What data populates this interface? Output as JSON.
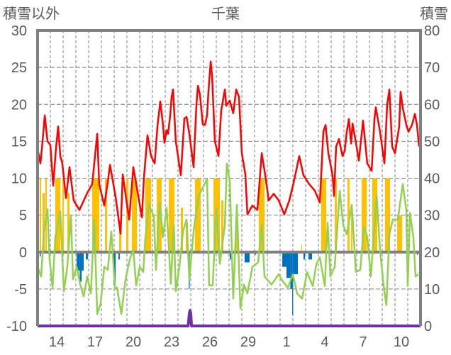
{
  "chart_data": {
    "type": "line",
    "title": "千葉",
    "ylabel_left": "積雪以外",
    "ylabel_right": "積雪",
    "ylim_left": [
      -10,
      30
    ],
    "ylim_right": [
      0,
      80
    ],
    "yticks_left": [
      "30",
      "25",
      "20",
      "15",
      "10",
      "5",
      "0",
      "-5",
      "-10"
    ],
    "yticks_right": [
      "80",
      "70",
      "60",
      "50",
      "40",
      "30",
      "20",
      "10",
      "0"
    ],
    "x_unit": "days from start of day 13",
    "xlim": [
      0,
      30
    ],
    "xtick_labels": [
      {
        "day": 1,
        "label": "14"
      },
      {
        "day": 4,
        "label": "17"
      },
      {
        "day": 7,
        "label": "20"
      },
      {
        "day": 10,
        "label": "23"
      },
      {
        "day": 13,
        "label": "26"
      },
      {
        "day": 16,
        "label": "29"
      },
      {
        "day": 19,
        "label": "1"
      },
      {
        "day": 22,
        "label": "4"
      },
      {
        "day": 25,
        "label": "7"
      },
      {
        "day": 28,
        "label": "10"
      }
    ],
    "grid": true,
    "colors": {
      "red": "#ff0000",
      "green": "#92d050",
      "yellow": "#ffc000",
      "blue": "#0070c0",
      "purple": "#7030a0",
      "axis": "#808080"
    },
    "series": [
      {
        "name": "red_line",
        "axis": "left",
        "points": [
          [
            0,
            14
          ],
          [
            0.22,
            12
          ],
          [
            0.39,
            15
          ],
          [
            0.56,
            18.5
          ],
          [
            0.78,
            15
          ],
          [
            1,
            14.5
          ],
          [
            1.22,
            9
          ],
          [
            1.44,
            14
          ],
          [
            1.61,
            17
          ],
          [
            1.78,
            13
          ],
          [
            1.94,
            12
          ],
          [
            2.22,
            7.3
          ],
          [
            2.5,
            11.5
          ],
          [
            2.83,
            7
          ],
          [
            3.28,
            5.7
          ],
          [
            3.89,
            8
          ],
          [
            4.28,
            9.2
          ],
          [
            4.67,
            16
          ],
          [
            4.83,
            9.2
          ],
          [
            5.22,
            6.3
          ],
          [
            5.5,
            9.5
          ],
          [
            5.67,
            11.8
          ],
          [
            6.11,
            7.5
          ],
          [
            6.5,
            2.5
          ],
          [
            6.67,
            10.5
          ],
          [
            7.17,
            4.4
          ],
          [
            7.5,
            11.5
          ],
          [
            8.17,
            4.7
          ],
          [
            8.33,
            10
          ],
          [
            8.61,
            15.8
          ],
          [
            8.89,
            13
          ],
          [
            9.17,
            12
          ],
          [
            9.39,
            17
          ],
          [
            9.61,
            20.4
          ],
          [
            9.83,
            17.2
          ],
          [
            9.94,
            14.8
          ],
          [
            10.11,
            16.5
          ],
          [
            10.22,
            16
          ],
          [
            10.39,
            18.5
          ],
          [
            10.5,
            21
          ],
          [
            10.61,
            22
          ],
          [
            10.83,
            15
          ],
          [
            11.22,
            10.4
          ],
          [
            11.5,
            18.1
          ],
          [
            11.67,
            18.3
          ],
          [
            11.89,
            16
          ],
          [
            12.11,
            13
          ],
          [
            12.22,
            11.5
          ],
          [
            12.44,
            19.8
          ],
          [
            12.56,
            22.5
          ],
          [
            12.72,
            21.3
          ],
          [
            12.94,
            17.3
          ],
          [
            13.11,
            17.2
          ],
          [
            13.28,
            18.5
          ],
          [
            13.39,
            21.8
          ],
          [
            13.56,
            25.8
          ],
          [
            13.67,
            23.8
          ],
          [
            13.89,
            15
          ],
          [
            14.17,
            13
          ],
          [
            14.39,
            19.2
          ],
          [
            14.67,
            22
          ],
          [
            14.78,
            19.8
          ],
          [
            15.06,
            20.5
          ],
          [
            15.33,
            18.8
          ],
          [
            15.56,
            22
          ],
          [
            15.78,
            21
          ],
          [
            16,
            13.4
          ],
          [
            16.28,
            10.5
          ],
          [
            16.44,
            5.1
          ],
          [
            16.83,
            6.3
          ],
          [
            17.22,
            5.7
          ],
          [
            17.56,
            13.4
          ],
          [
            17.83,
            10.5
          ],
          [
            18.11,
            7
          ],
          [
            18.5,
            7.9
          ],
          [
            18.89,
            7
          ],
          [
            19.33,
            5.1
          ],
          [
            19.72,
            7
          ],
          [
            20.06,
            9.4
          ],
          [
            20.5,
            13
          ],
          [
            20.83,
            10.4
          ],
          [
            21.28,
            9.2
          ],
          [
            21.72,
            8.3
          ],
          [
            22.11,
            6.7
          ],
          [
            22.39,
            16.3
          ],
          [
            22.56,
            17.2
          ],
          [
            22.78,
            13.4
          ],
          [
            23.11,
            10.4
          ],
          [
            23.22,
            7.6
          ],
          [
            23.39,
            14.3
          ],
          [
            23.61,
            15.3
          ],
          [
            23.89,
            13
          ],
          [
            24.06,
            13.7
          ],
          [
            24.22,
            16.3
          ],
          [
            24.39,
            18
          ],
          [
            24.56,
            14.7
          ],
          [
            24.67,
            17.4
          ],
          [
            24.89,
            15.3
          ],
          [
            25.17,
            12.4
          ],
          [
            25.5,
            17.8
          ],
          [
            25.83,
            12
          ],
          [
            26.17,
            11
          ],
          [
            26.39,
            18
          ],
          [
            26.5,
            19.6
          ],
          [
            26.83,
            16.3
          ],
          [
            27.17,
            12
          ],
          [
            27.39,
            20
          ],
          [
            27.56,
            22
          ],
          [
            27.78,
            14.3
          ],
          [
            28,
            13.4
          ],
          [
            28.33,
            17
          ],
          [
            28.44,
            21.7
          ],
          [
            28.61,
            19.5
          ],
          [
            28.89,
            17.2
          ],
          [
            29.06,
            16.3
          ],
          [
            29.33,
            17.2
          ],
          [
            29.56,
            18.7
          ],
          [
            29.72,
            17.2
          ],
          [
            29.89,
            14.3
          ]
        ]
      },
      {
        "name": "green_line",
        "axis": "left",
        "points": [
          [
            0,
            -2
          ],
          [
            0.28,
            -3.3
          ],
          [
            0.5,
            2.7
          ],
          [
            0.78,
            5.8
          ],
          [
            0.94,
            -1
          ],
          [
            1.17,
            -4.8
          ],
          [
            1.39,
            2
          ],
          [
            1.78,
            5.5
          ],
          [
            2.06,
            -5.3
          ],
          [
            2.33,
            -2
          ],
          [
            2.61,
            5
          ],
          [
            2.78,
            -3.7
          ],
          [
            3.06,
            -2
          ],
          [
            3.33,
            -4.3
          ],
          [
            3.61,
            -6
          ],
          [
            3.89,
            -3.3
          ],
          [
            4.17,
            -5.6
          ],
          [
            4.44,
            4.4
          ],
          [
            4.67,
            -8.4
          ],
          [
            4.94,
            -7
          ],
          [
            5.22,
            -2
          ],
          [
            5.5,
            -2.4
          ],
          [
            5.78,
            2.8
          ],
          [
            6.06,
            -5
          ],
          [
            6.22,
            -4.8
          ],
          [
            6.56,
            -8.4
          ],
          [
            6.89,
            -3.7
          ],
          [
            7.22,
            -1
          ],
          [
            7.5,
            0.3
          ],
          [
            7.72,
            -4.5
          ],
          [
            8,
            -2
          ],
          [
            8.28,
            -2.7
          ],
          [
            8.44,
            1.8
          ],
          [
            8.72,
            6.4
          ],
          [
            9.11,
            4.8
          ],
          [
            9.28,
            -2.4
          ],
          [
            9.56,
            6.7
          ],
          [
            9.83,
            2
          ],
          [
            10.11,
            6
          ],
          [
            10.44,
            -4.3
          ],
          [
            10.67,
            3.7
          ],
          [
            10.83,
            -5.3
          ],
          [
            11.11,
            -2
          ],
          [
            11.39,
            2.8
          ],
          [
            11.67,
            4.4
          ],
          [
            11.89,
            -3.7
          ],
          [
            12.22,
            2.8
          ],
          [
            12.61,
            7.6
          ],
          [
            13,
            8.9
          ],
          [
            13.28,
            9.9
          ],
          [
            13.44,
            -4.5
          ],
          [
            13.72,
            -4.5
          ],
          [
            14,
            5.8
          ],
          [
            14.28,
            -1.6
          ],
          [
            14.67,
            3.7
          ],
          [
            14.83,
            12
          ],
          [
            15.06,
            9.6
          ],
          [
            15.33,
            -6.3
          ],
          [
            15.61,
            6.4
          ],
          [
            15.89,
            -7.6
          ],
          [
            16.17,
            -4.4
          ],
          [
            16.44,
            -5.6
          ],
          [
            16.83,
            -2
          ],
          [
            17.28,
            -1.4
          ],
          [
            17.56,
            3.7
          ],
          [
            17.78,
            -3.3
          ],
          [
            18.33,
            -4.4
          ],
          [
            18.89,
            -3
          ],
          [
            19.22,
            -4
          ],
          [
            19.61,
            -4.8
          ],
          [
            20,
            -3
          ],
          [
            20.33,
            -5.6
          ],
          [
            20.72,
            -6.3
          ],
          [
            21.11,
            -2.7
          ],
          [
            21.56,
            -4.6
          ],
          [
            21.83,
            -1.7
          ],
          [
            22.11,
            -0.7
          ],
          [
            22.5,
            -4.6
          ],
          [
            22.72,
            4
          ],
          [
            22.94,
            -3.3
          ],
          [
            23.28,
            -2
          ],
          [
            23.67,
            8.3
          ],
          [
            23.94,
            3.7
          ],
          [
            24.22,
            2.4
          ],
          [
            24.61,
            6.4
          ],
          [
            24.94,
            -2.7
          ],
          [
            25.28,
            -2.4
          ],
          [
            25.56,
            3.4
          ],
          [
            25.83,
            2.1
          ],
          [
            26.11,
            -3.3
          ],
          [
            26.56,
            7.7
          ],
          [
            26.83,
            0.3
          ],
          [
            27.11,
            -4.6
          ],
          [
            27.33,
            -7.2
          ],
          [
            27.56,
            2.4
          ],
          [
            27.83,
            4.4
          ],
          [
            28.22,
            4.4
          ],
          [
            28.61,
            9.2
          ],
          [
            28.89,
            5.7
          ],
          [
            29,
            -4.6
          ],
          [
            29.17,
            5.3
          ],
          [
            29.44,
            2.1
          ],
          [
            29.61,
            -3.3
          ],
          [
            29.83,
            -3
          ]
        ]
      },
      {
        "name": "yellow_bars",
        "axis": "left",
        "type": "bar",
        "bars": [
          [
            0.17,
            0.28,
            10
          ],
          [
            0.39,
            0.56,
            8
          ],
          [
            0.61,
            0.72,
            10
          ],
          [
            1.39,
            1.78,
            10
          ],
          [
            1.94,
            2.06,
            10
          ],
          [
            2.33,
            2.5,
            8
          ],
          [
            4.28,
            4.83,
            10
          ],
          [
            5.28,
            5.44,
            10
          ],
          [
            6.39,
            6.56,
            4
          ],
          [
            6.94,
            7.11,
            10
          ],
          [
            7.39,
            7.78,
            10
          ],
          [
            8.44,
            8.89,
            10
          ],
          [
            9.33,
            9.72,
            10
          ],
          [
            10.28,
            10.72,
            10
          ],
          [
            11.22,
            11.39,
            6
          ],
          [
            11.61,
            11.78,
            4
          ],
          [
            12.33,
            12.78,
            10
          ],
          [
            13.78,
            14.28,
            10
          ],
          [
            14.39,
            14.56,
            7
          ],
          [
            15.5,
            15.67,
            5
          ],
          [
            17.33,
            17.78,
            10
          ],
          [
            20.67,
            20.72,
            1
          ],
          [
            22.22,
            22.61,
            10
          ],
          [
            23.28,
            23.44,
            10
          ],
          [
            24.28,
            24.44,
            10
          ],
          [
            24.56,
            24.67,
            6
          ],
          [
            25.39,
            25.78,
            10
          ],
          [
            26.22,
            26.61,
            10
          ],
          [
            27.22,
            27.61,
            10
          ],
          [
            28.17,
            28.56,
            5
          ]
        ]
      },
      {
        "name": "blue_bars",
        "axis": "left",
        "type": "bar",
        "bars": [
          [
            0.17,
            0.25,
            -0.6
          ],
          [
            3.06,
            3.3,
            -2.5
          ],
          [
            3.3,
            3.45,
            -4
          ],
          [
            3.45,
            3.61,
            -2.5
          ],
          [
            3.78,
            3.94,
            -1
          ],
          [
            5.94,
            6.11,
            -4.5
          ],
          [
            6.33,
            6.44,
            -1
          ],
          [
            11.85,
            11.92,
            -5
          ],
          [
            15.06,
            15.28,
            -1
          ],
          [
            16.22,
            16.61,
            -1.4
          ],
          [
            17.06,
            17.12,
            -0.4
          ],
          [
            19.17,
            19.5,
            -2
          ],
          [
            19.5,
            19.8,
            -3.5
          ],
          [
            19.8,
            19.95,
            -5
          ],
          [
            19.95,
            20.02,
            -8.5
          ],
          [
            20.02,
            20.39,
            -3
          ],
          [
            20.83,
            20.95,
            -1
          ],
          [
            21.22,
            21.5,
            -1
          ],
          [
            29.72,
            29.8,
            -0.4
          ]
        ]
      },
      {
        "name": "purple_snow_line",
        "axis": "right",
        "points": [
          [
            0,
            0
          ],
          [
            11.8,
            0
          ],
          [
            11.88,
            3
          ],
          [
            11.94,
            4.2
          ],
          [
            12.0,
            3.5
          ],
          [
            12.06,
            0
          ],
          [
            30,
            0
          ]
        ]
      }
    ]
  }
}
